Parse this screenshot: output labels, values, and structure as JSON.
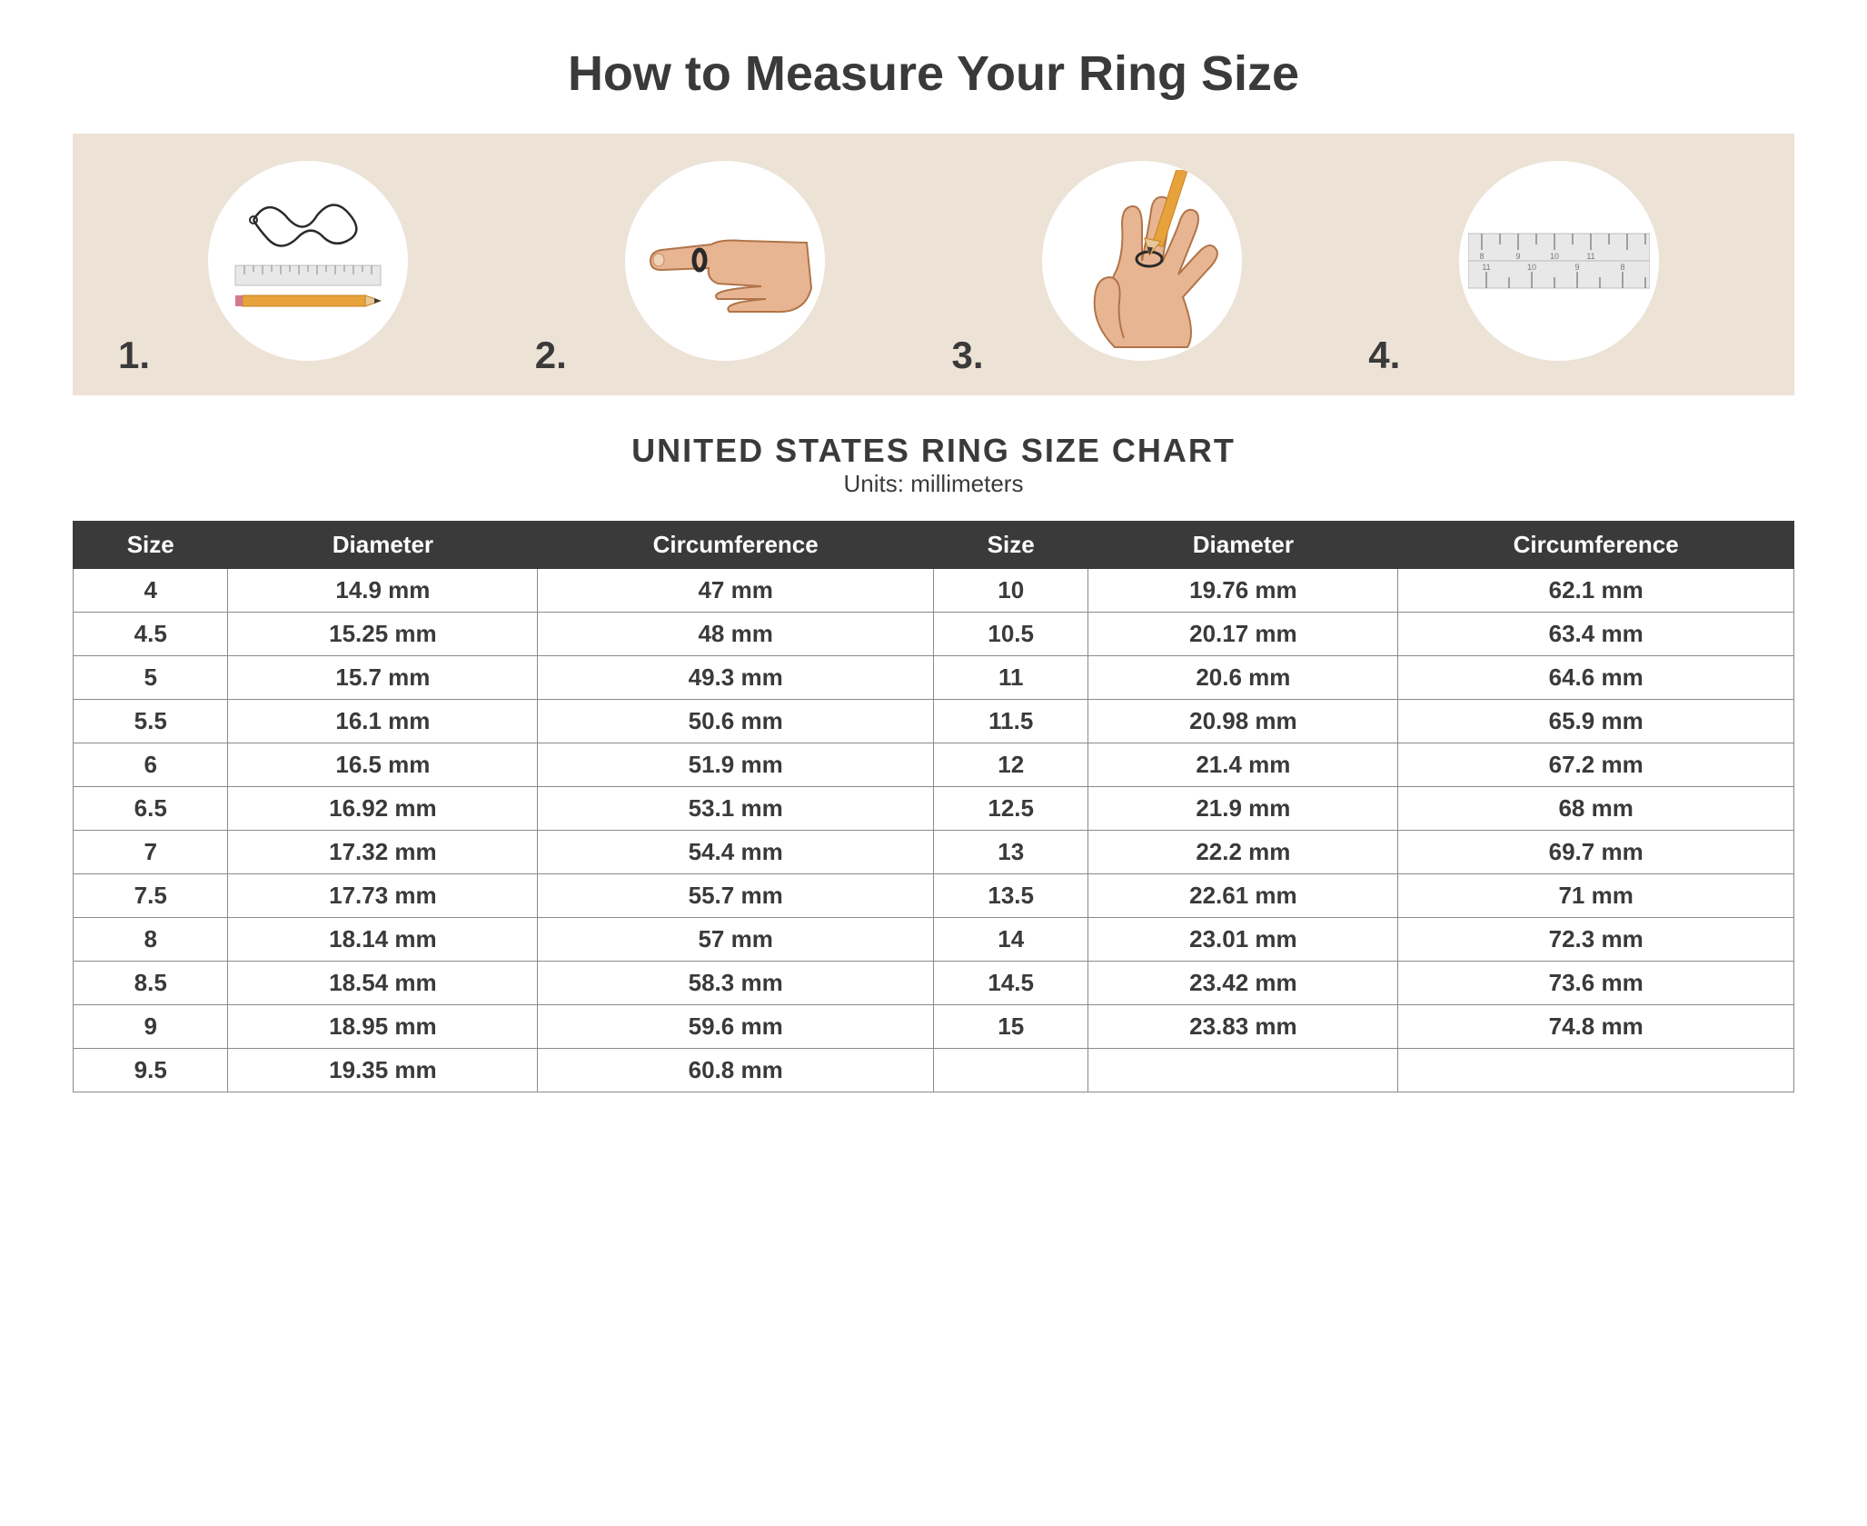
{
  "title": "How to Measure Your Ring Size",
  "panel": {
    "bg": "#ece2d6",
    "circle_bg": "#ffffff"
  },
  "steps": {
    "s1": {
      "num": "1."
    },
    "s2": {
      "num": "2."
    },
    "s3": {
      "num": "3."
    },
    "s4": {
      "num": "4."
    }
  },
  "chart": {
    "title": "UNITED STATES RING SIZE CHART",
    "subtitle": "Units: millimeters",
    "header_bg": "#3a3a3a",
    "header_fg": "#ffffff",
    "border_color": "#8a8a8a",
    "text_color": "#3a3a3a",
    "font_size": 26,
    "columns": [
      "Size",
      "Diameter",
      "Circumference",
      "Size",
      "Diameter",
      "Circumference"
    ],
    "rows": [
      [
        "4",
        "14.9 mm",
        "47 mm",
        "10",
        "19.76 mm",
        "62.1 mm"
      ],
      [
        "4.5",
        "15.25 mm",
        "48 mm",
        "10.5",
        "20.17 mm",
        "63.4 mm"
      ],
      [
        "5",
        "15.7 mm",
        "49.3 mm",
        "11",
        "20.6 mm",
        "64.6 mm"
      ],
      [
        "5.5",
        "16.1 mm",
        "50.6 mm",
        "11.5",
        "20.98 mm",
        "65.9 mm"
      ],
      [
        "6",
        "16.5 mm",
        "51.9 mm",
        "12",
        "21.4 mm",
        "67.2 mm"
      ],
      [
        "6.5",
        "16.92 mm",
        "53.1 mm",
        "12.5",
        "21.9 mm",
        "68 mm"
      ],
      [
        "7",
        "17.32 mm",
        "54.4 mm",
        "13",
        "22.2 mm",
        "69.7 mm"
      ],
      [
        "7.5",
        "17.73 mm",
        "55.7 mm",
        "13.5",
        "22.61 mm",
        "71 mm"
      ],
      [
        "8",
        "18.14 mm",
        "57 mm",
        "14",
        "23.01 mm",
        "72.3 mm"
      ],
      [
        "8.5",
        "18.54 mm",
        "58.3 mm",
        "14.5",
        "23.42 mm",
        "73.6 mm"
      ],
      [
        "9",
        "18.95 mm",
        "59.6 mm",
        "15",
        "23.83 mm",
        "74.8 mm"
      ],
      [
        "9.5",
        "19.35 mm",
        "60.8 mm",
        "",
        "",
        ""
      ]
    ]
  },
  "colors": {
    "skin": "#e8b593",
    "skin_dark": "#d4966e",
    "pencil_body": "#e8a23c",
    "pencil_tip": "#3a3a3a",
    "ruler": "#e8e8e8",
    "string": "#2a2a2a"
  }
}
